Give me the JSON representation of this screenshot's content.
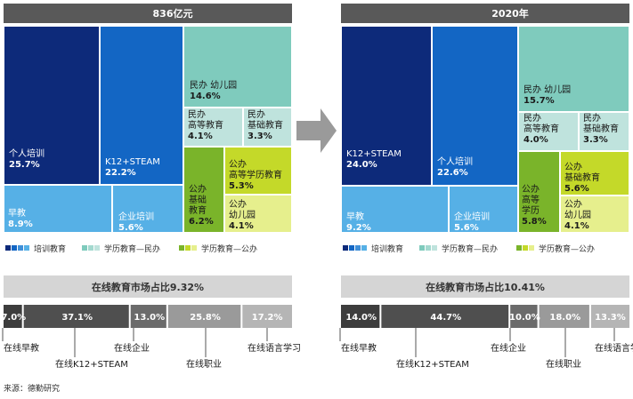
{
  "colors": {
    "navy": "#0d2a7a",
    "blue": "#1366c4",
    "light_blue": "#56b0e6",
    "teal": "#7fcbbd",
    "pale_teal": "#bfe3dd",
    "olive": "#7ab42a",
    "yellow_green": "#c4d929",
    "pale_yellow": "#e6ef8d",
    "header_bg": "#595959",
    "band_bg": "#d5d5d5",
    "arrow": "#9a9a9a"
  },
  "chart_data": [
    {
      "type": "treemap",
      "title": "836亿元",
      "cells": [
        {
          "label": "个人培训",
          "value": 25.7,
          "value_text": "25.7%",
          "color": "navy"
        },
        {
          "label": "K12+STEAM",
          "value": 22.2,
          "value_text": "22.2%",
          "color": "blue"
        },
        {
          "label": "早教",
          "value": 8.9,
          "value_text": "8.9%",
          "color": "light_blue"
        },
        {
          "label": "企业培训",
          "value": 5.6,
          "value_text": "5.6%",
          "color": "light_blue"
        },
        {
          "label": "民办幼儿园",
          "value": 14.6,
          "value_text": "14.6%",
          "color": "teal"
        },
        {
          "label": "民办高等教育",
          "value": 4.1,
          "value_text": "4.1%",
          "color": "pale_teal"
        },
        {
          "label": "民办基础教育",
          "value": 3.3,
          "value_text": "3.3%",
          "color": "pale_teal"
        },
        {
          "label": "公办基础教育",
          "value": 6.2,
          "value_text": "6.2%",
          "color": "olive"
        },
        {
          "label": "公办高等学历教育",
          "value": 5.3,
          "value_text": "5.3%",
          "color": "yellow_green"
        },
        {
          "label": "公办幼儿园",
          "value": 4.1,
          "value_text": "4.1%",
          "color": "pale_yellow"
        }
      ],
      "legend": [
        "培训教育",
        "学历教育—民办",
        "学历教育—公办"
      ],
      "online_title": "在线教育市场占比9.32%",
      "online_segments": [
        {
          "label": "在线早教",
          "value": 7.0,
          "value_text": "7.0%"
        },
        {
          "label": "在线K12+STEAM",
          "value": 37.1,
          "value_text": "37.1%"
        },
        {
          "label": "在线企业",
          "value": 13.0,
          "value_text": "13.0%"
        },
        {
          "label": "在线职业",
          "value": 25.8,
          "value_text": "25.8%"
        },
        {
          "label": "在线语言学习",
          "value": 17.2,
          "value_text": "17.2%"
        }
      ]
    },
    {
      "type": "treemap",
      "title": "2020年",
      "cells": [
        {
          "label": "K12+STEAM",
          "value": 24.0,
          "value_text": "24.0%",
          "color": "navy"
        },
        {
          "label": "个人培训",
          "value": 22.6,
          "value_text": "22.6%",
          "color": "blue"
        },
        {
          "label": "早教",
          "value": 9.2,
          "value_text": "9.2%",
          "color": "light_blue"
        },
        {
          "label": "企业培训",
          "value": 5.6,
          "value_text": "5.6%",
          "color": "light_blue"
        },
        {
          "label": "民办幼儿园",
          "value": 15.7,
          "value_text": "15.7%",
          "color": "teal"
        },
        {
          "label": "民办高等教育",
          "value": 4.0,
          "value_text": "4.0%",
          "color": "pale_teal"
        },
        {
          "label": "民办基础教育",
          "value": 3.3,
          "value_text": "3.3%",
          "color": "pale_teal"
        },
        {
          "label": "公办高等学历",
          "value": 5.8,
          "value_text": "5.8%",
          "color": "olive"
        },
        {
          "label": "公办基础教育",
          "value": 5.6,
          "value_text": "5.6%",
          "color": "yellow_green"
        },
        {
          "label": "公办幼儿园",
          "value": 4.1,
          "value_text": "4.1%",
          "color": "pale_yellow"
        }
      ],
      "legend": [
        "培训教育",
        "学历教育—民办",
        "学历教育—公办"
      ],
      "online_title": "在线教育市场占比10.41%",
      "online_segments": [
        {
          "label": "在线早教",
          "value": 14.0,
          "value_text": "14.0%"
        },
        {
          "label": "在线K12+STEAM",
          "value": 44.7,
          "value_text": "44.7%"
        },
        {
          "label": "在线企业",
          "value": 10.0,
          "value_text": "10.0%"
        },
        {
          "label": "在线职业",
          "value": 18.0,
          "value_text": "18.0%"
        },
        {
          "label": "在线语言学习",
          "value": 13.3,
          "value_text": "13.3%"
        }
      ]
    }
  ],
  "source": "来源：德勤研究"
}
